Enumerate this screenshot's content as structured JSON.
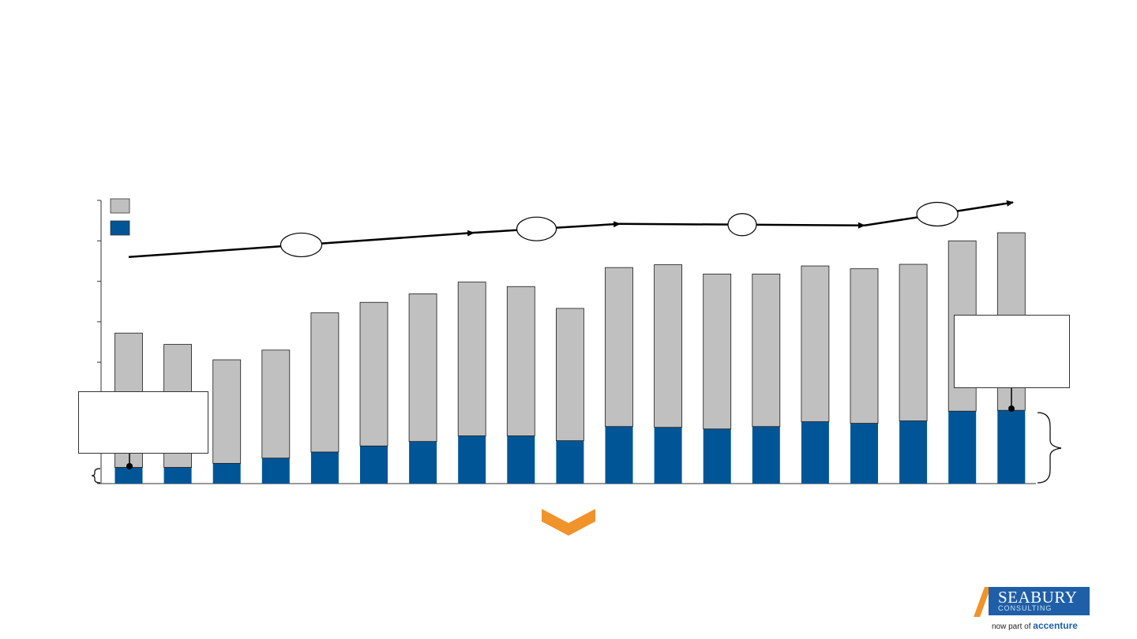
{
  "chart_data": {
    "type": "bar",
    "stacked": true,
    "categories": [
      "",
      "",
      "",
      "",
      "",
      "",
      "",
      "",
      "",
      "",
      "",
      "",
      "",
      "",
      "",
      "",
      "",
      "",
      ""
    ],
    "series": [
      {
        "color": "#005596",
        "values": [
          0.4,
          0.4,
          0.5,
          0.63,
          0.78,
          0.93,
          1.04,
          1.18,
          1.18,
          1.06,
          1.41,
          1.39,
          1.35,
          1.41,
          1.53,
          1.49,
          1.55,
          1.79,
          1.81
        ]
      },
      {
        "color": "#c0c0c0",
        "values": [
          3.32,
          3.04,
          2.56,
          2.67,
          3.44,
          3.55,
          3.65,
          3.8,
          3.69,
          3.27,
          3.93,
          4.02,
          3.83,
          3.77,
          3.85,
          3.82,
          3.87,
          4.21,
          4.39
        ]
      }
    ],
    "ylim": [
      0,
      7
    ],
    "y_ticks": [
      0,
      1,
      2,
      3,
      4,
      5,
      6,
      7
    ],
    "y_tick_labels_visible": false,
    "legend_placement": "top-left",
    "trend": {
      "arrows": 4,
      "ellipse_labels_visible": false,
      "values": [
        5.6,
        6.2,
        6.42,
        6.4,
        6.38,
        6.95
      ]
    }
  },
  "colors": {
    "accent_chevron": "#f0932b",
    "axis": "#333333"
  },
  "logo": {
    "name": "SEABURY",
    "sub": "CONSULTING",
    "tagline_prefix": "now part of",
    "tagline_brand": "accenture"
  }
}
